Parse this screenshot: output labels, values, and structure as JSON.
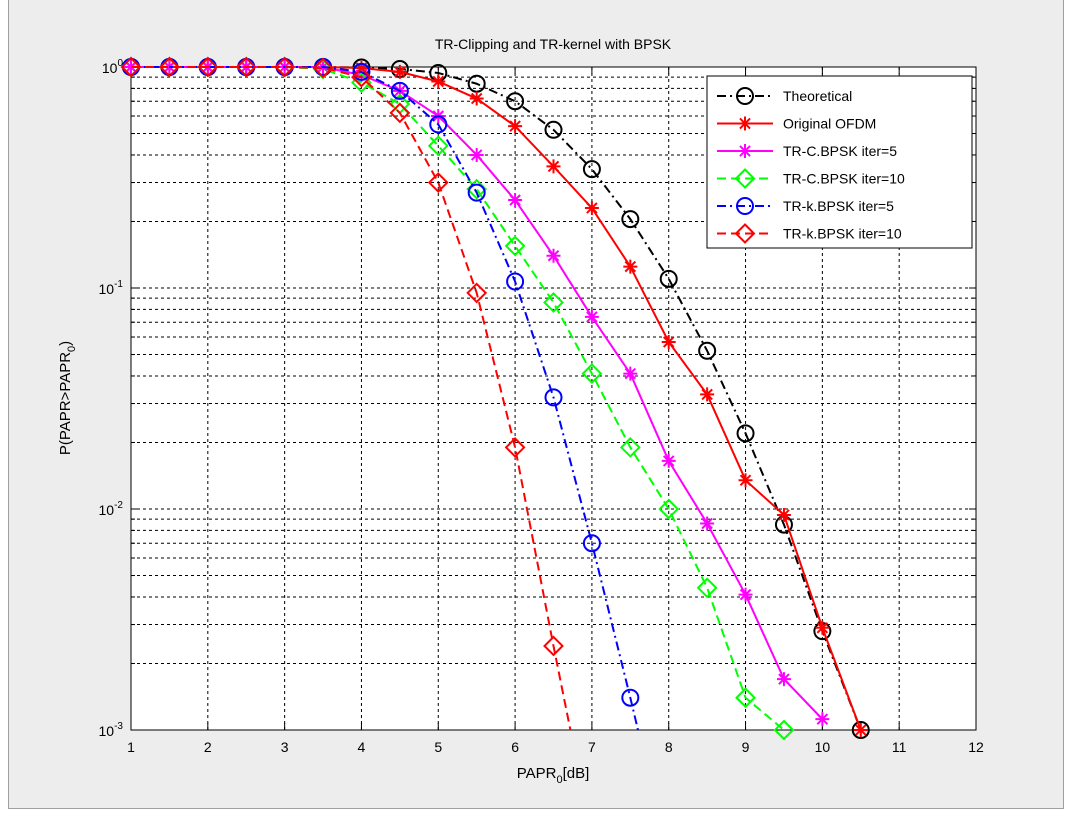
{
  "chart_data": {
    "type": "line",
    "title": "TR-Clipping and TR-kernel with BPSK",
    "xlabel": "PAPR",
    "xlabel_sub": "0",
    "xlabel_suffix": "[dB]",
    "ylabel": "P(PAPR>PAPR",
    "ylabel_sub": "0",
    "ylabel_suffix": ")",
    "xlim": [
      1,
      12
    ],
    "ylim": [
      0.001,
      1
    ],
    "yscale": "log",
    "grid": true,
    "legend_position": "top-right",
    "x_ticks": [
      "1",
      "2",
      "3",
      "4",
      "5",
      "6",
      "7",
      "8",
      "9",
      "10",
      "11",
      "12"
    ],
    "y_ticks": [
      {
        "value": 1,
        "base": "10",
        "exp": "0"
      },
      {
        "value": 0.1,
        "base": "10",
        "exp": "-1"
      },
      {
        "value": 0.01,
        "base": "10",
        "exp": "-2"
      },
      {
        "value": 0.001,
        "base": "10",
        "exp": "-3"
      }
    ],
    "series": [
      {
        "name": "Theoretical",
        "color": "#000000",
        "line_style": "dashdot",
        "marker": "circle",
        "x": [
          1,
          1.5,
          2,
          2.5,
          3,
          3.5,
          4,
          4.5,
          5,
          5.5,
          6,
          6.5,
          7,
          7.5,
          8,
          8.5,
          9,
          9.5,
          10,
          10.5
        ],
        "y": [
          1,
          1,
          1,
          1,
          1,
          1,
          0.995,
          0.98,
          0.94,
          0.84,
          0.7,
          0.52,
          0.345,
          0.205,
          0.11,
          0.052,
          0.022,
          0.0085,
          0.0028,
          0.001
        ]
      },
      {
        "name": "Original OFDM",
        "color": "#ff0000",
        "line_style": "solid",
        "marker": "star",
        "x": [
          1,
          1.5,
          2,
          2.5,
          3,
          3.5,
          4,
          4.5,
          5,
          5.5,
          6,
          6.5,
          7,
          7.5,
          8,
          8.5,
          9,
          9.5,
          10,
          10.5
        ],
        "y": [
          1,
          1,
          1,
          1,
          1,
          1,
          0.99,
          0.95,
          0.86,
          0.72,
          0.54,
          0.355,
          0.23,
          0.125,
          0.057,
          0.033,
          0.0135,
          0.0094,
          0.0029,
          0.001
        ]
      },
      {
        "name": "TR-C.BPSK iter=5",
        "color": "#ff00ff",
        "line_style": "solid",
        "marker": "star",
        "x": [
          1,
          1.5,
          2,
          2.5,
          3,
          3.5,
          4,
          4.5,
          5,
          5.5,
          6,
          6.5,
          7,
          7.5,
          8,
          8.5,
          9,
          9.5,
          10
        ],
        "y": [
          1,
          1,
          1,
          1,
          1,
          1,
          0.92,
          0.78,
          0.6,
          0.4,
          0.25,
          0.14,
          0.074,
          0.041,
          0.0165,
          0.0086,
          0.0041,
          0.0017,
          0.00112
        ]
      },
      {
        "name": "TR-C.BPSK iter=10",
        "color": "#00ff00",
        "line_style": "dashed",
        "marker": "diamond",
        "x": [
          1,
          1.5,
          2,
          2.5,
          3,
          3.5,
          4,
          4.5,
          5,
          5.5,
          6,
          6.5,
          7,
          7.5,
          8,
          8.5,
          9,
          9.5
        ],
        "y": [
          1,
          1,
          1,
          1,
          1,
          0.98,
          0.85,
          0.68,
          0.44,
          0.28,
          0.155,
          0.086,
          0.041,
          0.019,
          0.01,
          0.0044,
          0.0014,
          0.001
        ]
      },
      {
        "name": "TR-k.BPSK iter=5",
        "color": "#0000ff",
        "line_style": "dashdot",
        "marker": "circle",
        "x": [
          1,
          1.5,
          2,
          2.5,
          3,
          3.5,
          4,
          4.5,
          5,
          5.5,
          6,
          6.5,
          7,
          7.5,
          7.6
        ],
        "y": [
          1,
          1,
          1,
          1,
          1,
          1,
          0.95,
          0.78,
          0.55,
          0.27,
          0.107,
          0.032,
          0.007,
          0.0014,
          0.001
        ]
      },
      {
        "name": "TR-k.BPSK iter=10",
        "color": "#ff0000",
        "line_style": "dashed",
        "marker": "diamond",
        "x": [
          1,
          1.5,
          2,
          2.5,
          3,
          3.5,
          4,
          4.5,
          5,
          5.5,
          6,
          6.5,
          6.72
        ],
        "y": [
          1,
          1,
          1,
          1,
          1,
          0.99,
          0.9,
          0.62,
          0.3,
          0.095,
          0.019,
          0.0024,
          0.001
        ]
      }
    ]
  }
}
